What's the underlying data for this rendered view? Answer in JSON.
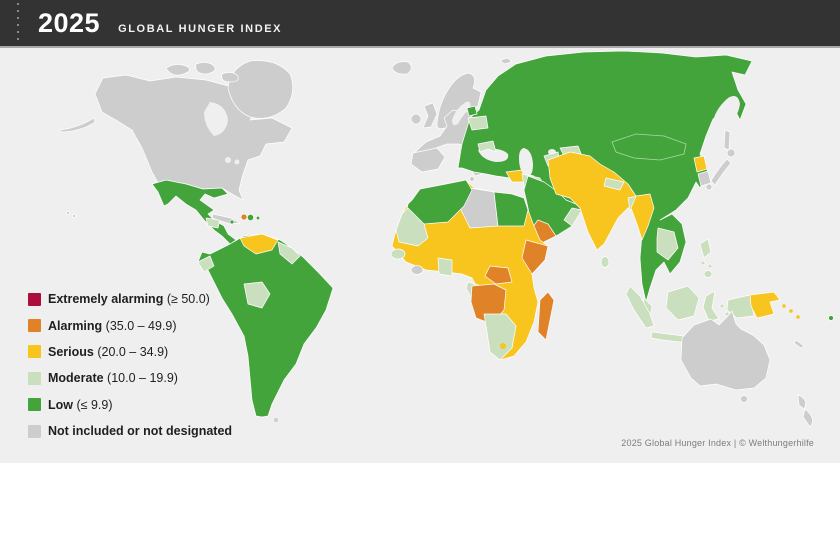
{
  "header": {
    "year": "2025",
    "title": "GLOBAL HUNGER INDEX"
  },
  "attribution": "2025 Global Hunger Index | © Welthungerhilfe",
  "map": {
    "type": "choropleth-world-map",
    "ocean_color": "#efefef",
    "regions": [
      {
        "name": "United States / Canada / Greenland / Western Europe / Australia / Japan / New Zealand / Cuba / Libya / Liberia / South Korea",
        "category": "not_included"
      },
      {
        "name": "Russia / China / Mongolia / Kazakhstan / Iran / Turkey / Saudi Arabia / Morocco / Algeria / Tunisia / Egypt / Mexico / Colombia / Brazil / Argentina / Thailand / Vietnam / Dominican Republic / Fiji",
        "category": "low"
      },
      {
        "name": "Mauritania / Senegal / Ghana / Gabon / Namibia / Botswana / South Africa / Ecuador / Bolivia / Guyana / Guatemala / Belarus / Romania / Iraq / Oman / Nepal / Bangladesh / Sri Lanka / Laos / Cambodia / Malaysia / Indonesia / Philippines",
        "category": "moderate"
      },
      {
        "name": "Sahel belt / Mali / Niger / Chad / Sudan / Nigeria / Ethiopia / Kenya / Tanzania / Angola / Zambia / Zimbabwe / Mozambique / Syria / Afghanistan / Pakistan / India / Myanmar / North Korea / Venezuela / Papua New Guinea / Solomon Islands / Timor-Leste",
        "category": "serious"
      },
      {
        "name": "Somalia / South Sudan / DR Congo / Madagascar / Yemen / Haiti",
        "category": "alarming"
      }
    ]
  },
  "legend": {
    "items": [
      {
        "key": "extremely_alarming",
        "label": "Extremely alarming",
        "range": "(≥ 50.0)",
        "color": "#ab0d3d"
      },
      {
        "key": "alarming",
        "label": "Alarming",
        "range": "(35.0 – 49.9)",
        "color": "#e08227"
      },
      {
        "key": "serious",
        "label": "Serious",
        "range": "(20.0 – 34.9)",
        "color": "#f7c51e"
      },
      {
        "key": "moderate",
        "label": "Moderate",
        "range": "(10.0 – 19.9)",
        "color": "#cadfbe"
      },
      {
        "key": "low",
        "label": "Low",
        "range": "(≤ 9.9)",
        "color": "#44a43c"
      },
      {
        "key": "not_included",
        "label": "Not included or not designated",
        "range": "",
        "color": "#cdcdcd"
      }
    ]
  }
}
